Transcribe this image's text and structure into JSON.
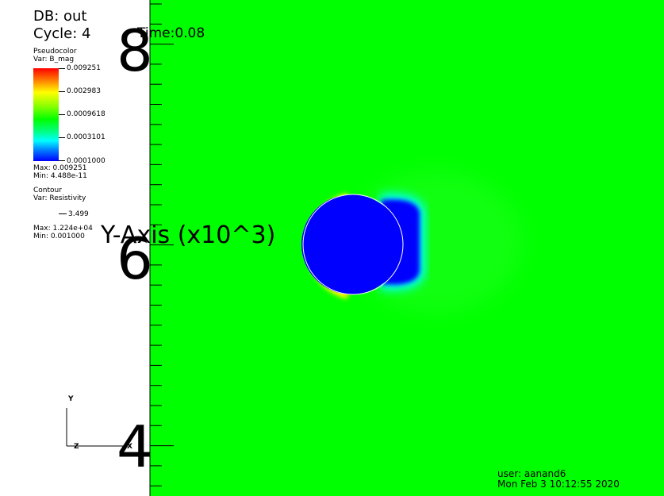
{
  "header": {
    "db": "DB: out",
    "cycle": "Cycle: 4",
    "time": "Time:0.08"
  },
  "pseudocolor": {
    "title": "Pseudocolor",
    "var": "Var: B_mag",
    "labels": [
      "0.009251",
      "0.002983",
      "0.0009618",
      "0.0003101",
      "0.0001000"
    ],
    "max": "Max:  0.009251",
    "min": "Min:  4.488e-11"
  },
  "contour": {
    "title": "Contour",
    "var": "Var: Resistivity",
    "level": "3.499",
    "max": "Max:  1.224e+04",
    "min": "Min:  0.001000"
  },
  "y_axis": {
    "title": "Y-Axis (x10^3)",
    "ticks": [
      "8",
      "6",
      "4"
    ]
  },
  "triad": {
    "y": "Y",
    "z": "Z",
    "x": "X"
  },
  "footer": {
    "user": "user: aanand6",
    "date": "Mon Feb  3 10:12:55 2020"
  },
  "colors": {
    "background_field": "#00ff00",
    "obstacle": "#0000ff"
  }
}
